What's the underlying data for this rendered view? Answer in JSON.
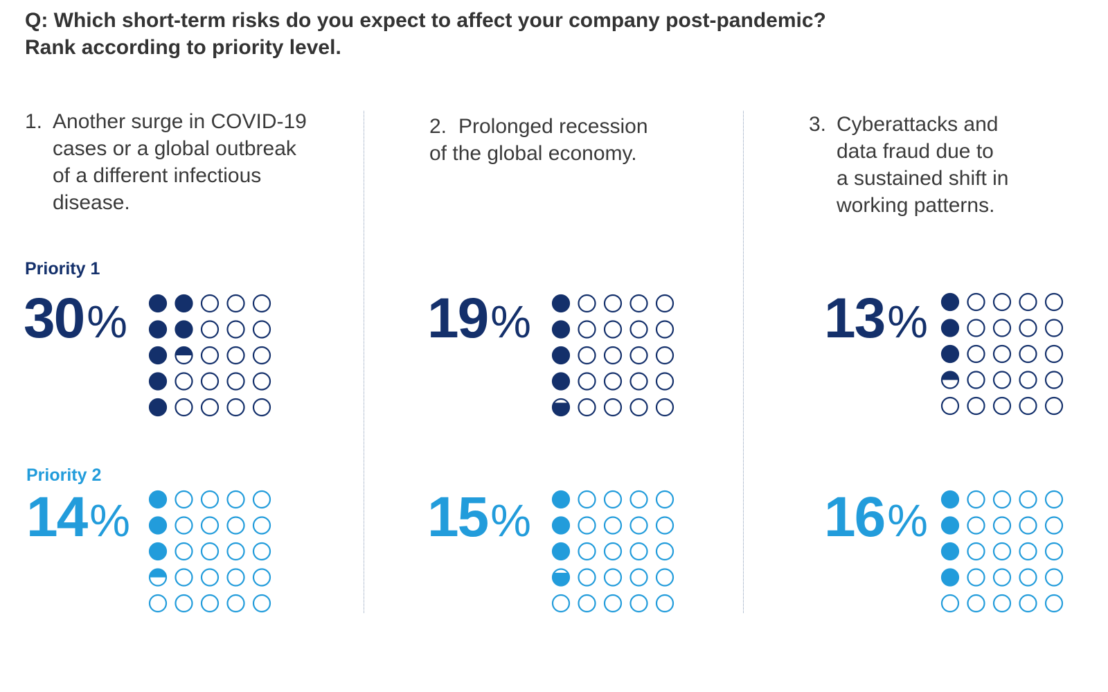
{
  "question": {
    "line1": "Q: Which short-term risks do you expect to affect your company post-pandemic?",
    "line2": "Rank according to priority level."
  },
  "colors": {
    "priority1": "#14306b",
    "priority2": "#229cdb",
    "text": "#333333"
  },
  "labels": {
    "priority1": "Priority 1",
    "priority2": "Priority 2"
  },
  "chart_data": {
    "type": "table",
    "grid": "5x5 dot grid per value; each dot = 4%, filled column-wise",
    "risks": [
      {
        "number": "1.",
        "text": "Another surge in COVID-19\ncases or a global outbreak\nof a different infectious\ndisease.",
        "priority1": {
          "value": 30,
          "label": "30",
          "unit": "%"
        },
        "priority2": {
          "value": 14,
          "label": "14",
          "unit": "%"
        }
      },
      {
        "number": "2.",
        "text": "Prolonged recession\nof the global economy.",
        "priority1": {
          "value": 19,
          "label": "19",
          "unit": "%"
        },
        "priority2": {
          "value": 15,
          "label": "15",
          "unit": "%"
        }
      },
      {
        "number": "3.",
        "text": "Cyberattacks and\ndata fraud due to\na sustained shift in\nworking patterns.",
        "priority1": {
          "value": 13,
          "label": "13",
          "unit": "%"
        },
        "priority2": {
          "value": 16,
          "label": "16",
          "unit": "%"
        }
      }
    ]
  }
}
